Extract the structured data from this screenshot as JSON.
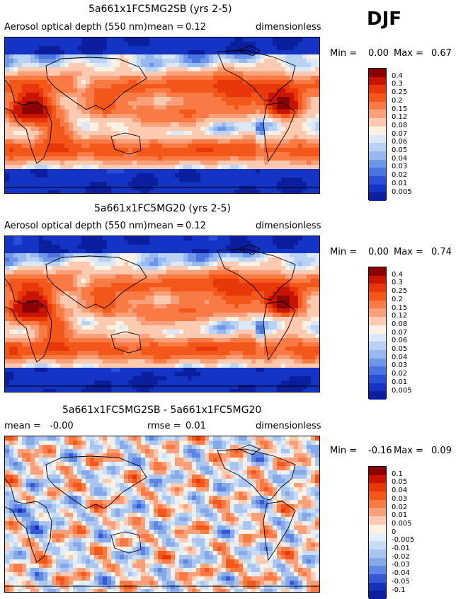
{
  "season": "DJF",
  "panels": [
    {
      "title": "5a661x1FC5MG2SB (yrs 2-5)",
      "left_label": "Aerosol optical depth (550 nm)",
      "mean_label": "mean =",
      "mean_value": "0.12",
      "units": "dimensionless",
      "min_label": "Min =",
      "min_value": "0.00",
      "max_label": "Max =",
      "max_value": "0.67"
    },
    {
      "title": "5a661x1FC5MG20 (yrs 2-5)",
      "left_label": "Aerosol optical depth (550 nm)",
      "mean_label": "mean =",
      "mean_value": "0.12",
      "units": "dimensionless",
      "min_label": "Min =",
      "min_value": "0.00",
      "max_label": "Max =",
      "max_value": "0.74"
    },
    {
      "title": "5a661x1FC5MG2SB - 5a661x1FC5MG20",
      "mean_label": "mean =",
      "mean_value": "-0.00",
      "rmse_label": "rmse =",
      "rmse_value": "0.01",
      "units": "dimensionless",
      "min_label": "Min =",
      "min_value": "-0.16",
      "max_label": "Max =",
      "max_value": "0.09"
    }
  ],
  "chart_data": [
    {
      "type": "heatmap",
      "title": "5a661x1FC5MG2SB (yrs 2-5)",
      "variable": "Aerosol optical depth (550 nm)",
      "units": "dimensionless",
      "mean": 0.12,
      "min": 0.0,
      "max": 0.67,
      "contour_levels": [
        "0.4",
        "0.3",
        "0.25",
        "0.2",
        "0.15",
        "0.12",
        "0.08",
        "0.07",
        "0.06",
        "0.05",
        "0.04",
        "0.03",
        "0.02",
        "0.01",
        "0.005"
      ],
      "colors": [
        "#8b0000",
        "#c81400",
        "#e8380a",
        "#f4571a",
        "#f87a44",
        "#f9a07a",
        "#fbcab0",
        "#fdf1e4",
        "#dbe8f7",
        "#b9d1f3",
        "#98b9ef",
        "#6f97e8",
        "#4a75e0",
        "#2a4fd6",
        "#1434c4",
        "#0a1e9e"
      ]
    },
    {
      "type": "heatmap",
      "title": "5a661x1FC5MG20 (yrs 2-5)",
      "variable": "Aerosol optical depth (550 nm)",
      "units": "dimensionless",
      "mean": 0.12,
      "min": 0.0,
      "max": 0.74,
      "contour_levels": [
        "0.4",
        "0.3",
        "0.25",
        "0.2",
        "0.15",
        "0.12",
        "0.08",
        "0.07",
        "0.06",
        "0.05",
        "0.04",
        "0.03",
        "0.02",
        "0.01",
        "0.005"
      ],
      "colors": [
        "#8b0000",
        "#c81400",
        "#e8380a",
        "#f4571a",
        "#f87a44",
        "#f9a07a",
        "#fbcab0",
        "#fdf1e4",
        "#dbe8f7",
        "#b9d1f3",
        "#98b9ef",
        "#6f97e8",
        "#4a75e0",
        "#2a4fd6",
        "#1434c4",
        "#0a1e9e"
      ]
    },
    {
      "type": "heatmap",
      "title": "5a661x1FC5MG2SB - 5a661x1FC5MG20",
      "units": "dimensionless",
      "mean": -0.0,
      "rmse": 0.01,
      "min": -0.16,
      "max": 0.09,
      "contour_levels": [
        "0.1",
        "0.05",
        "0.04",
        "0.03",
        "0.02",
        "0.01",
        "0.005",
        "0",
        "-0.005",
        "-0.01",
        "-0.02",
        "-0.03",
        "-0.04",
        "-0.05",
        "-0.1"
      ],
      "colors": [
        "#8b0000",
        "#c81400",
        "#e8380a",
        "#f4571a",
        "#f87a44",
        "#f9a07a",
        "#fbcab0",
        "#fdf1e4",
        "#e3eefa",
        "#c7dcf5",
        "#a9c5f0",
        "#86a9ea",
        "#5e86e2",
        "#3558d6",
        "#1631b8",
        "#0a1e9e"
      ]
    }
  ]
}
